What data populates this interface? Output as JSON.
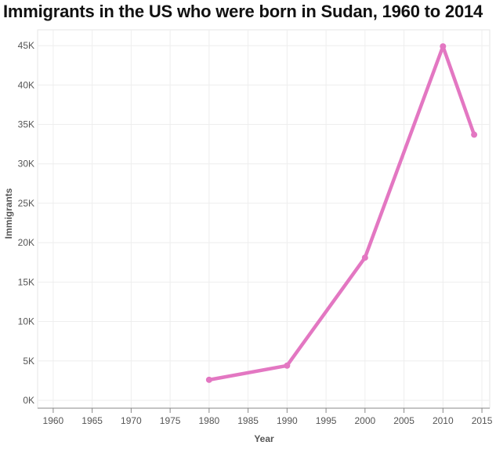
{
  "chart_data": {
    "type": "line",
    "title": "Immigrants in the US who were born in Sudan, 1960 to 2014",
    "xlabel": "Year",
    "ylabel": "Immigrants",
    "xlim": [
      1958,
      2016
    ],
    "ylim": [
      -1000,
      47000
    ],
    "x_ticks": [
      1960,
      1965,
      1970,
      1975,
      1980,
      1985,
      1990,
      1995,
      2000,
      2005,
      2010,
      2015
    ],
    "y_ticks": [
      0,
      5000,
      10000,
      15000,
      20000,
      25000,
      30000,
      35000,
      40000,
      45000
    ],
    "y_tick_labels": [
      "0K",
      "5K",
      "10K",
      "15K",
      "20K",
      "25K",
      "30K",
      "35K",
      "40K",
      "45K"
    ],
    "grid": true,
    "series": [
      {
        "x": [
          1980,
          1990,
          2000,
          2010,
          2014
        ],
        "values": [
          2600,
          4400,
          18100,
          44900,
          33700
        ],
        "color": "#e377c2"
      }
    ]
  }
}
